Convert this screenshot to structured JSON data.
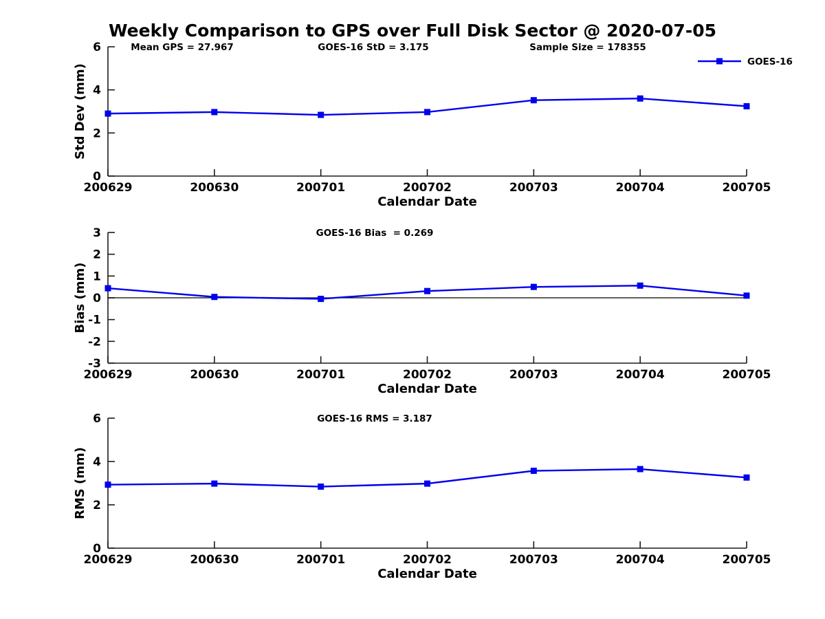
{
  "title": "Weekly Comparison to GPS over Full Disk Sector @ 2020-07-05",
  "legend": {
    "label": "GOES-16",
    "position": "top-right"
  },
  "colors": {
    "series": "#0000EE",
    "axis": "#1a1a1a",
    "text": "#000000",
    "zero_line": "#000000",
    "background": "#ffffff"
  },
  "chart_data": [
    {
      "type": "line",
      "x": [
        "200629",
        "200630",
        "200701",
        "200702",
        "200703",
        "200704",
        "200705"
      ],
      "series": [
        {
          "name": "GOES-16",
          "values": [
            2.9,
            2.97,
            2.84,
            2.97,
            3.52,
            3.6,
            3.24
          ]
        }
      ],
      "xlabel": "Calendar Date",
      "ylabel": "Std Dev (mm)",
      "ylim": [
        0,
        6
      ],
      "yticks": [
        0,
        2,
        4,
        6
      ],
      "grid": false,
      "annotations": [
        "Mean GPS = 27.967",
        "GOES-16 StD = 3.175",
        "Sample Size = 178355"
      ],
      "legend_entries": [
        "GOES-16"
      ]
    },
    {
      "type": "line",
      "x": [
        "200629",
        "200630",
        "200701",
        "200702",
        "200703",
        "200704",
        "200705"
      ],
      "series": [
        {
          "name": "GOES-16",
          "values": [
            0.44,
            0.04,
            -0.05,
            0.31,
            0.5,
            0.56,
            0.1
          ]
        }
      ],
      "xlabel": "Calendar Date",
      "ylabel": "Bias (mm)",
      "ylim": [
        -3,
        3
      ],
      "yticks": [
        -3,
        -2,
        -1,
        0,
        1,
        2,
        3
      ],
      "grid": false,
      "zero_line": true,
      "annotations": [
        "GOES-16 Bias  = 0.269"
      ],
      "legend_entries": []
    },
    {
      "type": "line",
      "x": [
        "200629",
        "200630",
        "200701",
        "200702",
        "200703",
        "200704",
        "200705"
      ],
      "series": [
        {
          "name": "GOES-16",
          "values": [
            2.93,
            2.98,
            2.84,
            2.98,
            3.57,
            3.65,
            3.26
          ]
        }
      ],
      "xlabel": "Calendar Date",
      "ylabel": "RMS (mm)",
      "ylim": [
        0,
        6
      ],
      "yticks": [
        0,
        2,
        4,
        6
      ],
      "grid": false,
      "annotations": [
        "GOES-16 RMS = 3.187"
      ],
      "legend_entries": []
    }
  ]
}
